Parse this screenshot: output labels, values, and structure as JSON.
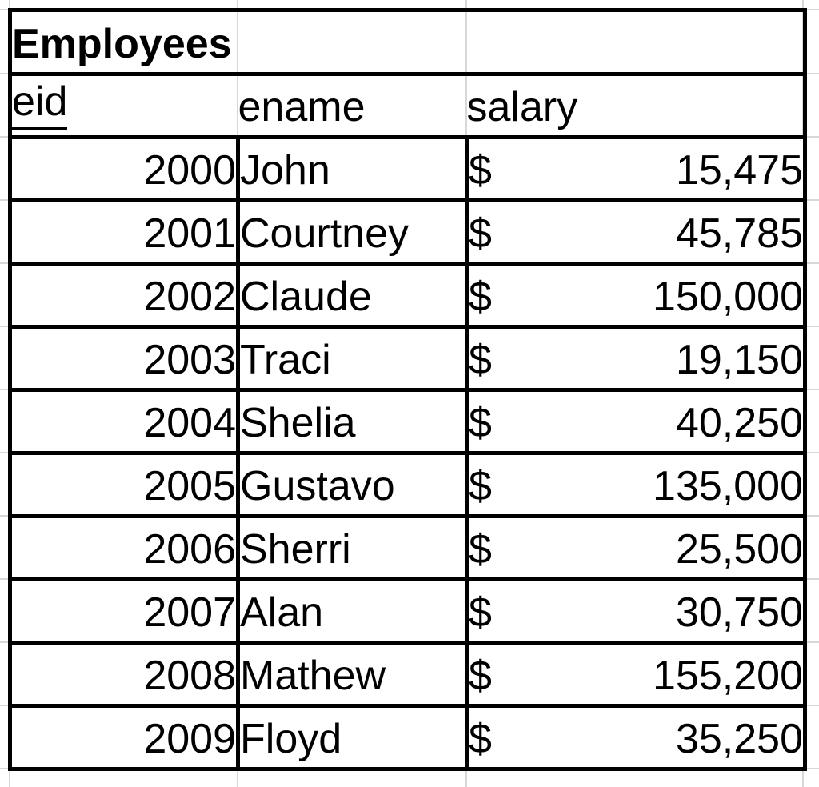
{
  "sheet": {
    "title": "Employees",
    "headers": [
      "eid",
      "ename",
      "salary"
    ],
    "currency_symbol": "$",
    "rows": [
      {
        "eid": "2000",
        "ename": "John",
        "salary": "15,475"
      },
      {
        "eid": "2001",
        "ename": "Courtney",
        "salary": "45,785"
      },
      {
        "eid": "2002",
        "ename": "Claude",
        "salary": "150,000"
      },
      {
        "eid": "2003",
        "ename": "Traci",
        "salary": "19,150"
      },
      {
        "eid": "2004",
        "ename": "Shelia",
        "salary": "40,250"
      },
      {
        "eid": "2005",
        "ename": "Gustavo",
        "salary": "135,000"
      },
      {
        "eid": "2006",
        "ename": "Sherri",
        "salary": "25,500"
      },
      {
        "eid": "2007",
        "ename": "Alan",
        "salary": "30,750"
      },
      {
        "eid": "2008",
        "ename": "Mathew",
        "salary": "155,200"
      },
      {
        "eid": "2009",
        "ename": "Floyd",
        "salary": "35,250"
      }
    ]
  },
  "colors": {
    "background": "#ffffff",
    "table_border": "#000000",
    "grid_line": "#d8d8d8",
    "text": "#000000"
  }
}
